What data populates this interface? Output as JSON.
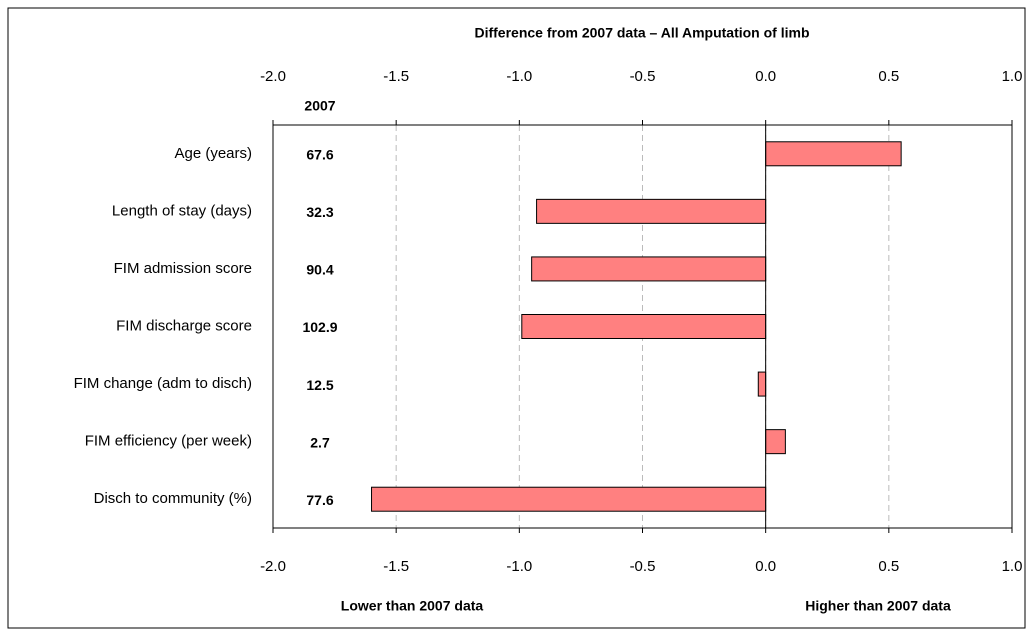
{
  "chart_data": {
    "type": "bar",
    "orientation": "horizontal",
    "title": "Difference from 2007 data – All Amputation of limb",
    "categories": [
      "Age (years)",
      "Length of stay (days)",
      "FIM admission score",
      "FIM discharge score",
      "FIM change (adm to disch)",
      "FIM efficiency (per week)",
      "Disch to community (%)"
    ],
    "values": [
      0.55,
      -0.93,
      -0.95,
      -0.99,
      -0.03,
      0.08,
      -1.6
    ],
    "color": "#ff8080",
    "baseline_label": "2007",
    "baseline_values": [
      67.6,
      32.3,
      90.4,
      102.9,
      12.5,
      2.7,
      77.6
    ],
    "xlim": [
      -2,
      1
    ],
    "xticks": [
      {
        "value": -2,
        "label": "-2.0"
      },
      -1.5,
      {
        "value": -1,
        "label": "-1.0"
      },
      -0.5,
      {
        "value": 0,
        "label": "0.0"
      },
      0.5,
      {
        "value": 1,
        "label": "1.0"
      }
    ],
    "grid": true,
    "lower_label": "Lower than 2007 data",
    "higher_label": "Higher than 2007 data"
  }
}
